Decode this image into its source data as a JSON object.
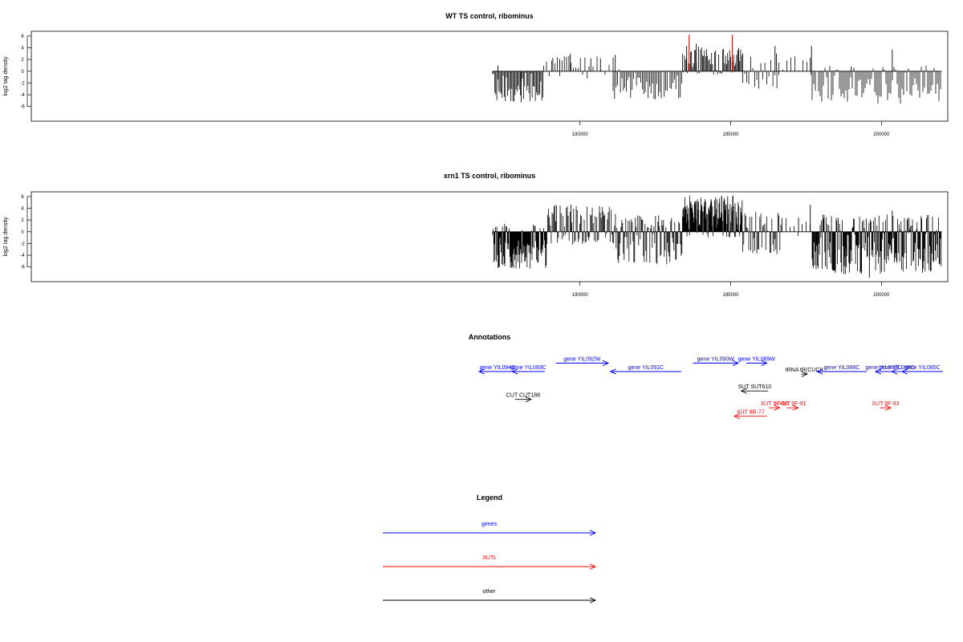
{
  "chart_data": [
    {
      "type": "bar",
      "id": "wt",
      "title": "WT TS control, ribominus",
      "ylabel": "log2 tag density",
      "xlim": [
        171800,
        202200
      ],
      "ylim": [
        -8.5,
        6.8
      ],
      "xticks": [
        190000,
        195000,
        200000
      ],
      "yticks": [
        6,
        4,
        2,
        0,
        -2,
        -4,
        -6
      ],
      "grid": false,
      "colors": {
        "bars": "#000000",
        "highlight": "#cc0000"
      },
      "segments": [
        {
          "x0": 187100,
          "x1": 188800,
          "min": -5.2,
          "max": 0,
          "density": 0.75
        },
        {
          "x0": 188800,
          "x1": 189100,
          "min": -1.5,
          "max": 2.0,
          "density": 0.3
        },
        {
          "x0": 189100,
          "x1": 190300,
          "min": -1.5,
          "max": 2.8,
          "density": 0.35
        },
        {
          "x0": 190300,
          "x1": 191100,
          "min": -1.0,
          "max": 2.5,
          "density": 0.2
        },
        {
          "x0": 191100,
          "x1": 193400,
          "min": -4.8,
          "max": 0.6,
          "density": 0.55
        },
        {
          "x0": 193400,
          "x1": 195400,
          "min": -0.6,
          "max": 4.2,
          "density": 0.8
        },
        {
          "x0": 195400,
          "x1": 196600,
          "min": -3.0,
          "max": 2.5,
          "density": 0.4
        },
        {
          "x0": 196600,
          "x1": 197700,
          "min": -0.8,
          "max": 3.0,
          "density": 0.2
        },
        {
          "x0": 197700,
          "x1": 202000,
          "min": -5.5,
          "max": 1.0,
          "density": 0.5
        }
      ],
      "spikes": [
        {
          "x": 187280,
          "y": 1.0
        },
        {
          "x": 189330,
          "y": 2.1
        },
        {
          "x": 189680,
          "y": 3.0
        },
        {
          "x": 190360,
          "y": 2.2
        },
        {
          "x": 190680,
          "y": 2.2
        },
        {
          "x": 191170,
          "y": 2.8
        },
        {
          "x": 193540,
          "y": 4.3
        },
        {
          "x": 193860,
          "y": 4.7
        },
        {
          "x": 195260,
          "y": 4.0
        },
        {
          "x": 196470,
          "y": 4.3
        },
        {
          "x": 196520,
          "y": 3.0
        },
        {
          "x": 197640,
          "y": 2.3
        },
        {
          "x": 197680,
          "y": 4.3
        },
        {
          "x": 199000,
          "y": 0.8
        },
        {
          "x": 200360,
          "y": 3.7
        },
        {
          "x": 188050,
          "y": -5.3
        }
      ],
      "highlights": [
        {
          "x": 193620,
          "y": 6.2
        },
        {
          "x": 195050,
          "y": 6.2
        }
      ]
    },
    {
      "type": "bar",
      "id": "xrn1",
      "title": "xrn1 TS control, ribominus",
      "ylabel": "log2 tag density",
      "xlim": [
        171800,
        202200
      ],
      "ylim": [
        -8.5,
        6.8
      ],
      "xticks": [
        190000,
        195000,
        200000
      ],
      "yticks": [
        6,
        4,
        2,
        0,
        -2,
        -4,
        -6
      ],
      "grid": false,
      "colors": {
        "bars": "#000000",
        "highlight": "#cc0000"
      },
      "segments": [
        {
          "x0": 187100,
          "x1": 188900,
          "min": -6.3,
          "max": 1.2,
          "density": 1.3
        },
        {
          "x0": 188900,
          "x1": 191200,
          "min": -2.2,
          "max": 4.6,
          "density": 0.9
        },
        {
          "x0": 191200,
          "x1": 193400,
          "min": -5.6,
          "max": 2.8,
          "density": 1.0
        },
        {
          "x0": 193400,
          "x1": 195400,
          "min": -1.0,
          "max": 6.0,
          "density": 1.6
        },
        {
          "x0": 195400,
          "x1": 196700,
          "min": -4.3,
          "max": 3.4,
          "density": 0.8
        },
        {
          "x0": 196700,
          "x1": 197700,
          "min": -0.8,
          "max": 2.5,
          "density": 0.2
        },
        {
          "x0": 197700,
          "x1": 202000,
          "min": -7.2,
          "max": 3.0,
          "density": 1.2
        }
      ],
      "spikes": [
        {
          "x": 187500,
          "y": 1.3
        },
        {
          "x": 189700,
          "y": 4.6
        },
        {
          "x": 193550,
          "y": 4.5
        },
        {
          "x": 194700,
          "y": 6.1
        },
        {
          "x": 194900,
          "y": 6.0
        },
        {
          "x": 196600,
          "y": 2.8
        },
        {
          "x": 197250,
          "y": 2.4
        },
        {
          "x": 197640,
          "y": 4.6
        },
        {
          "x": 200360,
          "y": 3.6
        },
        {
          "x": 199600,
          "y": -7.8
        },
        {
          "x": 198800,
          "y": -7.2
        }
      ],
      "highlights": [
        {
          "x": 193640,
          "y": 6.2
        },
        {
          "x": 195080,
          "y": 6.2
        }
      ]
    }
  ],
  "annotations": {
    "title": "Annotations",
    "tracks": [
      {
        "label": "gene YIL094C",
        "start": 187880,
        "end": 186650,
        "row": 0,
        "color": "#0000ff"
      },
      {
        "label": "gene YIL093C",
        "start": 188830,
        "end": 187750,
        "row": 0,
        "color": "#0000ff"
      },
      {
        "label": "gene YIL092W",
        "start": 189200,
        "end": 190940,
        "row": -1,
        "color": "#0000ff"
      },
      {
        "label": "gene YIL091C",
        "start": 193360,
        "end": 191010,
        "row": 0,
        "color": "#0000ff"
      },
      {
        "label": "gene YIL090W",
        "start": 193750,
        "end": 195250,
        "row": -1,
        "color": "#0000ff"
      },
      {
        "label": "gene YIL089W",
        "start": 195520,
        "end": 196200,
        "row": -1,
        "color": "#0000ff"
      },
      {
        "label": "tRNA tR(CUC)I",
        "start": 197340,
        "end": 197540,
        "row": 0.3,
        "color": "#000000"
      },
      {
        "label": "gene YIL088C",
        "start": 199510,
        "end": 197860,
        "row": 0,
        "color": "#0000ff"
      },
      {
        "label": "gene YIL087C",
        "start": 200330,
        "end": 199800,
        "row": 0,
        "color": "#0000ff"
      },
      {
        "label": "gene YIL086C",
        "start": 200660,
        "end": 200340,
        "row": 0,
        "color": "#0000ff"
      },
      {
        "label": "gene YIL085C",
        "start": 202040,
        "end": 200680,
        "row": 0,
        "color": "#0000ff"
      },
      {
        "label": "SUT SUT610",
        "start": 196240,
        "end": 195350,
        "row": 2.3,
        "color": "#000000"
      },
      {
        "label": "CUT CUT188",
        "start": 187850,
        "end": 188380,
        "row": 3.3,
        "color": "#000000"
      },
      {
        "label": "XUT 9F-90",
        "start": 196270,
        "end": 196620,
        "row": 4.3,
        "color": "#ff0000"
      },
      {
        "label": "XUT 9F-91",
        "start": 196860,
        "end": 197240,
        "row": 4.3,
        "color": "#ff0000"
      },
      {
        "label": "XUT 9F-93",
        "start": 199960,
        "end": 200310,
        "row": 4.3,
        "color": "#ff0000"
      },
      {
        "label": "XUT 9R-77",
        "start": 196200,
        "end": 195120,
        "row": 5.3,
        "color": "#ff0000"
      }
    ]
  },
  "legend": {
    "title": "Legend",
    "items": [
      {
        "label": "genes",
        "color": "#0000ff"
      },
      {
        "label": "XUTs",
        "color": "#ff0000"
      },
      {
        "label": "other",
        "color": "#000000"
      }
    ]
  }
}
